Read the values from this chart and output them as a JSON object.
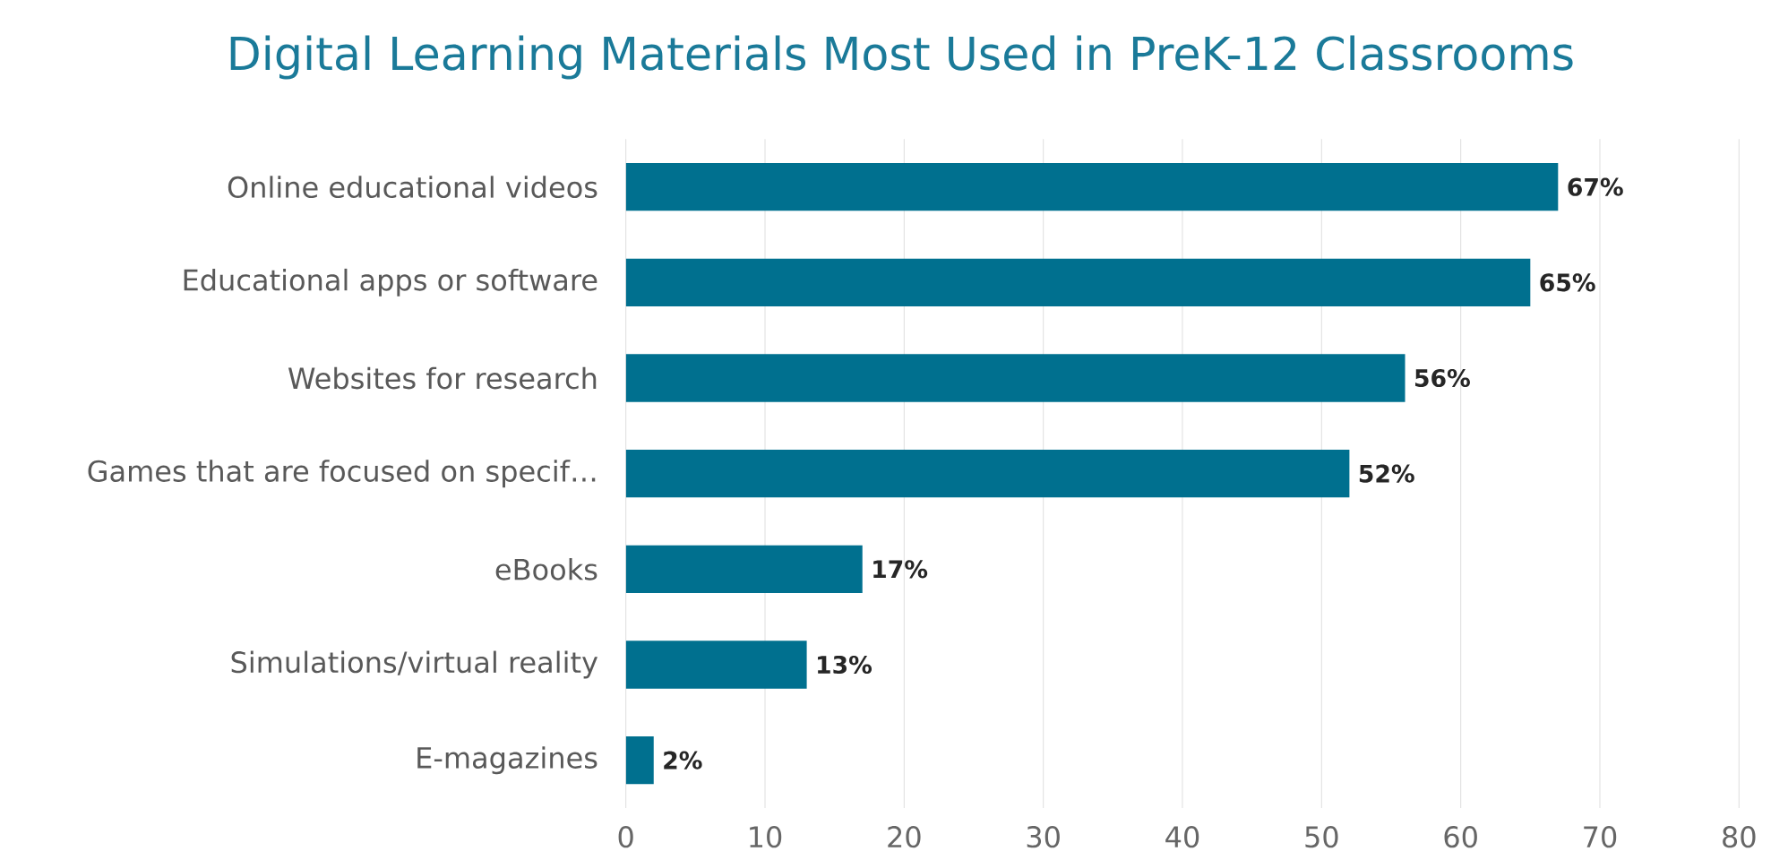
{
  "chart_data": {
    "type": "bar",
    "orientation": "horizontal",
    "title": "Digital Learning Materials Most Used in PreK-12 Classrooms",
    "categories": [
      "Online educational videos",
      "Educational apps or software",
      "Websites for research",
      "Games that are focused on specif…",
      "eBooks",
      "Simulations/virtual reality",
      "E-magazines"
    ],
    "values": [
      67,
      65,
      56,
      52,
      17,
      13,
      2
    ],
    "value_labels": [
      "67%",
      "65%",
      "56%",
      "52%",
      "17%",
      "13%",
      "2%"
    ],
    "color": "#00708f",
    "xlim": [
      0,
      80
    ],
    "xticks": [
      0,
      10,
      20,
      30,
      40,
      50,
      60,
      70,
      80
    ],
    "grid": "x"
  }
}
